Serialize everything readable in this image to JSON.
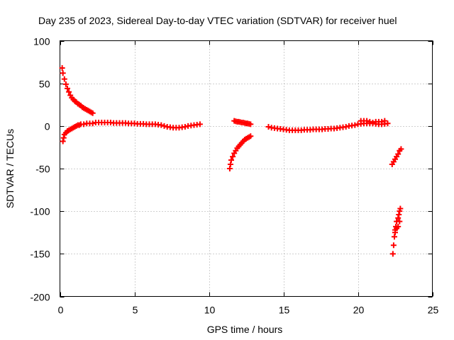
{
  "chart_data": {
    "type": "scatter",
    "title": "Day 235 of 2023, Sidereal Day-to-day VTEC variation (SDTVAR) for receiver huel",
    "xlabel": "GPS time / hours",
    "ylabel": "SDTVAR / TECUs",
    "xlim": [
      0,
      25
    ],
    "ylim": [
      -200,
      100
    ],
    "xticks": [
      0,
      5,
      10,
      15,
      20,
      25
    ],
    "yticks": [
      -200,
      -150,
      -100,
      -50,
      0,
      50,
      100
    ],
    "grid": true,
    "marker": "+",
    "series_color": "#ff0000",
    "series": [
      {
        "points": [
          [
            0.15,
            68
          ],
          [
            0.2,
            62
          ],
          [
            0.3,
            55
          ],
          [
            0.4,
            49
          ],
          [
            0.5,
            44
          ],
          [
            0.6,
            40
          ],
          [
            0.7,
            36
          ],
          [
            0.8,
            33
          ],
          [
            0.9,
            31
          ],
          [
            1.0,
            29
          ],
          [
            1.1,
            28
          ],
          [
            1.2,
            26
          ],
          [
            1.3,
            25
          ],
          [
            1.4,
            24
          ],
          [
            1.5,
            22
          ],
          [
            1.6,
            21
          ],
          [
            1.7,
            20
          ],
          [
            1.8,
            19
          ],
          [
            1.9,
            18
          ],
          [
            2.0,
            17
          ],
          [
            2.1,
            16
          ],
          [
            2.2,
            15
          ]
        ]
      },
      {
        "points": [
          [
            0.2,
            -18
          ],
          [
            0.25,
            -14
          ],
          [
            0.3,
            -10
          ],
          [
            0.4,
            -8
          ],
          [
            0.5,
            -6
          ],
          [
            0.6,
            -5
          ],
          [
            0.7,
            -4
          ],
          [
            0.8,
            -3
          ],
          [
            0.9,
            -2
          ],
          [
            1.0,
            -1
          ],
          [
            1.1,
            0
          ],
          [
            1.2,
            1
          ],
          [
            1.3,
            1
          ],
          [
            1.4,
            2
          ],
          [
            1.6,
            2
          ],
          [
            1.8,
            3
          ],
          [
            2.0,
            3
          ],
          [
            2.2,
            3
          ],
          [
            2.4,
            4
          ],
          [
            2.6,
            4
          ],
          [
            2.8,
            4
          ],
          [
            3.0,
            4
          ],
          [
            3.2,
            4
          ],
          [
            3.4,
            4
          ],
          [
            3.6,
            3.5
          ],
          [
            3.8,
            3.5
          ],
          [
            4.0,
            3.5
          ],
          [
            4.2,
            3.5
          ],
          [
            4.4,
            3.5
          ],
          [
            4.6,
            3
          ],
          [
            4.8,
            3
          ],
          [
            5.0,
            3
          ],
          [
            5.2,
            2.5
          ],
          [
            5.4,
            2.5
          ],
          [
            5.6,
            2.5
          ],
          [
            5.8,
            2
          ],
          [
            6.0,
            2
          ],
          [
            6.2,
            2
          ],
          [
            6.4,
            2
          ],
          [
            6.6,
            1.5
          ],
          [
            6.8,
            1
          ],
          [
            7.0,
            0
          ],
          [
            7.2,
            -1
          ],
          [
            7.4,
            -1.5
          ],
          [
            7.6,
            -2
          ],
          [
            7.8,
            -2
          ],
          [
            8.0,
            -2
          ],
          [
            8.2,
            -1.5
          ],
          [
            8.4,
            -1
          ],
          [
            8.6,
            0
          ],
          [
            8.8,
            0.5
          ],
          [
            9.0,
            1
          ],
          [
            9.2,
            1.5
          ],
          [
            9.4,
            2
          ]
        ]
      },
      {
        "points": [
          [
            11.4,
            -50
          ],
          [
            11.45,
            -45
          ],
          [
            11.5,
            -40
          ],
          [
            11.6,
            -36
          ],
          [
            11.7,
            -32
          ],
          [
            11.8,
            -29
          ],
          [
            11.9,
            -26
          ],
          [
            12.0,
            -24
          ],
          [
            12.1,
            -22
          ],
          [
            12.2,
            -20
          ],
          [
            12.3,
            -18
          ],
          [
            12.4,
            -16
          ],
          [
            12.5,
            -15
          ],
          [
            12.6,
            -14
          ],
          [
            12.7,
            -13
          ],
          [
            12.8,
            -12
          ]
        ]
      },
      {
        "points": [
          [
            11.7,
            6
          ],
          [
            11.8,
            5.5
          ],
          [
            11.9,
            5
          ],
          [
            12.0,
            5
          ],
          [
            12.1,
            4.5
          ],
          [
            12.2,
            4
          ],
          [
            12.3,
            4
          ],
          [
            12.4,
            3.5
          ],
          [
            12.5,
            3
          ],
          [
            12.6,
            3
          ],
          [
            12.7,
            2.5
          ],
          [
            12.8,
            2
          ]
        ]
      },
      {
        "points": [
          [
            14.0,
            -1
          ],
          [
            14.2,
            -2
          ],
          [
            14.4,
            -2.5
          ],
          [
            14.6,
            -3
          ],
          [
            14.8,
            -3.5
          ],
          [
            15.0,
            -4
          ],
          [
            15.2,
            -4.5
          ],
          [
            15.4,
            -5
          ],
          [
            15.6,
            -5
          ],
          [
            15.8,
            -5
          ],
          [
            16.0,
            -5
          ],
          [
            16.2,
            -5
          ],
          [
            16.4,
            -4.5
          ],
          [
            16.6,
            -4.5
          ],
          [
            16.8,
            -4.5
          ],
          [
            17.0,
            -4
          ],
          [
            17.2,
            -4
          ],
          [
            17.4,
            -4
          ],
          [
            17.6,
            -4
          ],
          [
            17.8,
            -3.5
          ],
          [
            18.0,
            -3.5
          ],
          [
            18.2,
            -3
          ],
          [
            18.4,
            -3
          ],
          [
            18.6,
            -2.5
          ],
          [
            18.8,
            -2
          ],
          [
            19.0,
            -1.5
          ],
          [
            19.2,
            -1
          ],
          [
            19.4,
            0
          ],
          [
            19.6,
            0.5
          ],
          [
            19.8,
            1
          ],
          [
            20.0,
            2
          ],
          [
            20.2,
            2.5
          ],
          [
            20.4,
            3
          ],
          [
            20.6,
            3
          ],
          [
            20.8,
            3
          ],
          [
            21.0,
            3
          ],
          [
            21.2,
            2.5
          ],
          [
            21.4,
            2
          ],
          [
            21.6,
            2
          ],
          [
            21.8,
            2.5
          ],
          [
            22.0,
            3
          ]
        ]
      },
      {
        "points": [
          [
            20.2,
            6
          ],
          [
            20.4,
            6
          ],
          [
            20.6,
            6
          ],
          [
            20.8,
            5
          ],
          [
            21.0,
            4
          ],
          [
            21.2,
            5
          ],
          [
            21.4,
            5
          ],
          [
            21.6,
            5
          ],
          [
            21.8,
            6
          ]
        ]
      },
      {
        "points": [
          [
            22.3,
            -45
          ],
          [
            22.4,
            -42
          ],
          [
            22.5,
            -39
          ],
          [
            22.6,
            -36
          ],
          [
            22.7,
            -33
          ],
          [
            22.8,
            -29
          ],
          [
            22.9,
            -27
          ]
        ]
      },
      {
        "points": [
          [
            22.35,
            -150
          ],
          [
            22.4,
            -140
          ],
          [
            22.45,
            -130
          ],
          [
            22.5,
            -125
          ],
          [
            22.55,
            -118
          ],
          [
            22.6,
            -112
          ],
          [
            22.7,
            -108
          ],
          [
            22.75,
            -104
          ],
          [
            22.8,
            -100
          ],
          [
            22.85,
            -97
          ],
          [
            22.5,
            -122
          ],
          [
            22.6,
            -120
          ],
          [
            22.7,
            -118
          ],
          [
            22.8,
            -112
          ]
        ]
      }
    ]
  }
}
